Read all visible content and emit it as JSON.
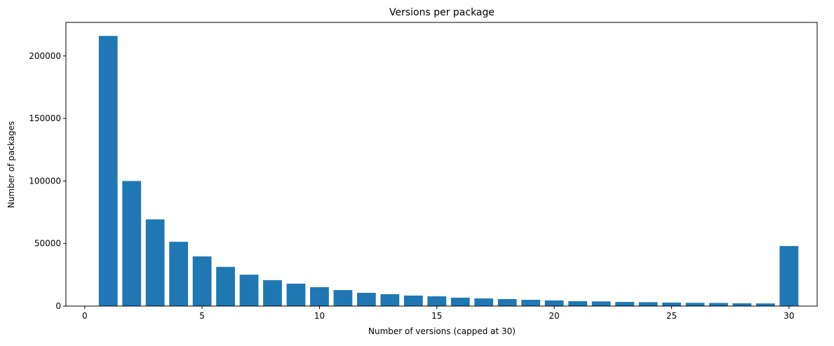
{
  "chart_data": {
    "type": "bar",
    "title": "Versions per package",
    "x_label": "Number of versions (capped at 30)",
    "y_label": "Number of packages",
    "x": [
      1,
      2,
      3,
      4,
      5,
      6,
      7,
      8,
      9,
      10,
      11,
      12,
      13,
      14,
      15,
      16,
      17,
      18,
      19,
      20,
      21,
      22,
      23,
      24,
      25,
      26,
      27,
      28,
      29,
      30
    ],
    "values": [
      216000,
      100000,
      69300,
      51400,
      39700,
      31300,
      25100,
      20700,
      17900,
      15100,
      12800,
      10600,
      9500,
      8400,
      7800,
      6700,
      6100,
      5600,
      5000,
      4500,
      3900,
      3700,
      3300,
      3100,
      2800,
      2600,
      2500,
      2200,
      2100,
      48000
    ],
    "color": "#1f77b4",
    "xlim": [
      -0.8,
      31.2
    ],
    "xticks": [
      0,
      5,
      10,
      15,
      20,
      25,
      30
    ],
    "ylim": [
      0,
      226800
    ],
    "yticks": [
      0,
      50000,
      100000,
      150000,
      200000
    ]
  }
}
